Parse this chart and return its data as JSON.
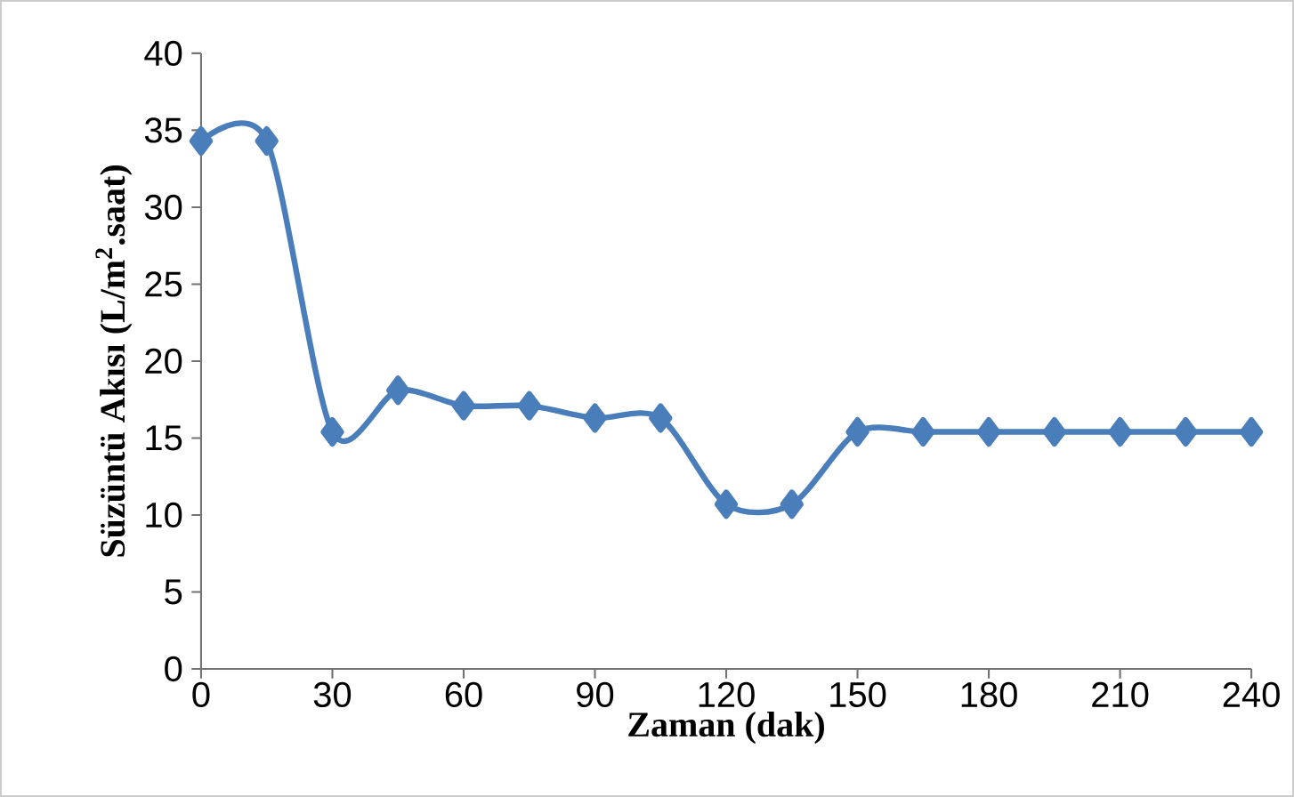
{
  "chart_data": {
    "type": "line",
    "xlabel": "Zaman (dak)",
    "ylabel": "Süzüntü Akısı (L/m$^{2}$.saat)",
    "x": [
      0,
      15,
      30,
      45,
      60,
      75,
      90,
      105,
      120,
      135,
      150,
      165,
      180,
      195,
      210,
      225,
      240
    ],
    "series": [
      {
        "color": "#4a7ebb",
        "values": [
          34.3,
          34.3,
          15.4,
          18.1,
          17.1,
          17.1,
          16.3,
          16.3,
          10.7,
          10.7,
          15.4,
          15.4,
          15.4,
          15.4,
          15.4,
          15.4,
          15.4
        ]
      }
    ],
    "xlim": [
      0,
      240
    ],
    "xticks": [
      0,
      30,
      60,
      90,
      120,
      150,
      180,
      210,
      240
    ],
    "ylim": [
      0,
      40
    ],
    "yticks": [
      0,
      5,
      10,
      15,
      20,
      25,
      30,
      35,
      40
    ],
    "marker": "diamond",
    "line_style": "solid",
    "grid": false
  }
}
